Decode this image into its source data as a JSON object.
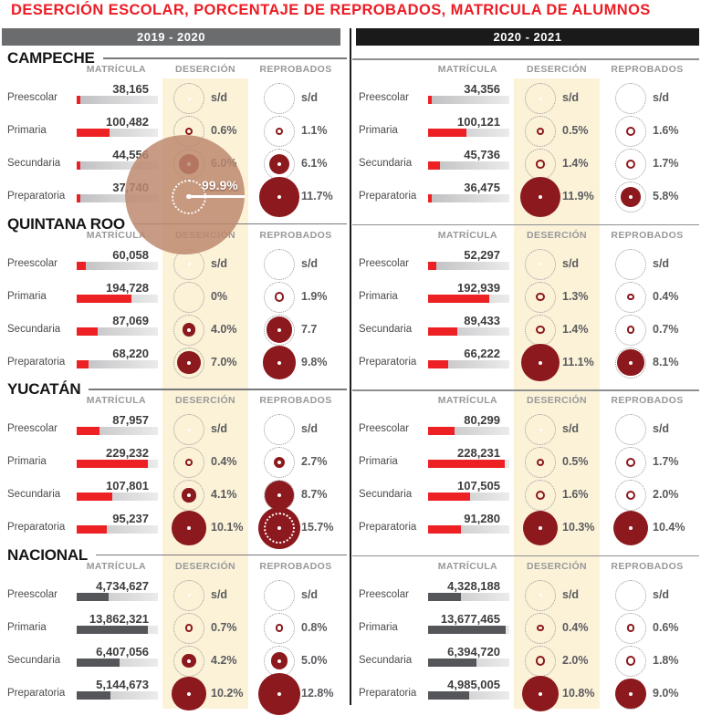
{
  "title": "DESERCIÓN ESCOLAR, PORCENTAJE DE REPROBADOS, MATRICULA DE ALUMNOS",
  "colors": {
    "accent": "#ec1c24",
    "maroon": "#8c191d",
    "bar_red": "#ed2024",
    "bar_dark": "#54565a",
    "cream": "#fbf2d8",
    "year_left_bg": "#6b6c6e",
    "year_right_bg": "#1a1a1a"
  },
  "chart_data": {
    "type": "table",
    "title": "DESERCIÓN ESCOLAR, PORCENTAJE DE REPROBADOS, MATRICULA DE ALUMNOS",
    "period_labels": [
      "2019 - 2020",
      "2020 - 2021"
    ],
    "columns": [
      "MATRÍCULA",
      "DESERCIÓN",
      "REPROBADOS"
    ],
    "levels": [
      "Preescolar",
      "Primaria",
      "Secundaria",
      "Preparatoria"
    ],
    "sections": [
      {
        "name": "CAMPECHE",
        "bar_style": "red",
        "periods": [
          {
            "rows": [
              {
                "label": "Preescolar",
                "matricula": "38,165",
                "bar_fill": 0.04,
                "desercion": "s/d",
                "reprobados": "s/d"
              },
              {
                "label": "Primaria",
                "matricula": "100,482",
                "bar_fill": 0.41,
                "desercion": "0.6%",
                "reprobados": "1.1%"
              },
              {
                "label": "Secundaria",
                "matricula": "44,556",
                "bar_fill": 0.05,
                "desercion": "6.0%",
                "reprobados": "6.1%"
              },
              {
                "label": "Preparatoria",
                "matricula": "37,740",
                "bar_fill": 0.04,
                "desercion": "99.9%",
                "desercion_highlight": true,
                "reprobados": "11.7%"
              }
            ]
          },
          {
            "rows": [
              {
                "label": "Preescolar",
                "matricula": "34,356",
                "bar_fill": 0.05,
                "desercion": "s/d",
                "reprobados": "s/d"
              },
              {
                "label": "Primaria",
                "matricula": "100,121",
                "bar_fill": 0.47,
                "desercion": "0.5%",
                "reprobados": "1.6%"
              },
              {
                "label": "Secundaria",
                "matricula": "45,736",
                "bar_fill": 0.15,
                "desercion": "1.4%",
                "reprobados": "1.7%"
              },
              {
                "label": "Preparatoria",
                "matricula": "36,475",
                "bar_fill": 0.05,
                "desercion": "11.9%",
                "reprobados": "5.8%"
              }
            ]
          }
        ]
      },
      {
        "name": "QUINTANA ROO",
        "bar_style": "red",
        "periods": [
          {
            "rows": [
              {
                "label": "Preescolar",
                "matricula": "60,058",
                "bar_fill": 0.11,
                "desercion": "s/d",
                "reprobados": "s/d"
              },
              {
                "label": "Primaria",
                "matricula": "194,728",
                "bar_fill": 0.67,
                "desercion": "0%",
                "reprobados": "1.9%"
              },
              {
                "label": "Secundaria",
                "matricula": "87,069",
                "bar_fill": 0.26,
                "desercion": "4.0%",
                "reprobados": "7.7"
              },
              {
                "label": "Preparatoria",
                "matricula": "68,220",
                "bar_fill": 0.15,
                "desercion": "7.0%",
                "reprobados": "9.8%"
              }
            ]
          },
          {
            "rows": [
              {
                "label": "Preescolar",
                "matricula": "52,297",
                "bar_fill": 0.1,
                "desercion": "s/d",
                "reprobados": "s/d"
              },
              {
                "label": "Primaria",
                "matricula": "192,939",
                "bar_fill": 0.75,
                "desercion": "1.3%",
                "reprobados": "0.4%"
              },
              {
                "label": "Secundaria",
                "matricula": "89,433",
                "bar_fill": 0.36,
                "desercion": "1.4%",
                "reprobados": "0.7%"
              },
              {
                "label": "Preparatoria",
                "matricula": "66,222",
                "bar_fill": 0.25,
                "desercion": "11.1%",
                "reprobados": "8.1%"
              }
            ]
          }
        ]
      },
      {
        "name": "YUCATÁN",
        "bar_style": "red",
        "periods": [
          {
            "rows": [
              {
                "label": "Preescolar",
                "matricula": "87,957",
                "bar_fill": 0.28,
                "desercion": "s/d",
                "reprobados": "s/d"
              },
              {
                "label": "Primaria",
                "matricula": "229,232",
                "bar_fill": 0.88,
                "desercion": "0.4%",
                "reprobados": "2.7%"
              },
              {
                "label": "Secundaria",
                "matricula": "107,801",
                "bar_fill": 0.44,
                "desercion": "4.1%",
                "reprobados": "8.7%"
              },
              {
                "label": "Preparatoria",
                "matricula": "95,237",
                "bar_fill": 0.37,
                "desercion": "10.1%",
                "reprobados": "15.7%"
              }
            ]
          },
          {
            "rows": [
              {
                "label": "Preescolar",
                "matricula": "80,299",
                "bar_fill": 0.33,
                "desercion": "s/d",
                "reprobados": "s/d"
              },
              {
                "label": "Primaria",
                "matricula": "228,231",
                "bar_fill": 0.94,
                "desercion": "0.5%",
                "reprobados": "1.7%"
              },
              {
                "label": "Secundaria",
                "matricula": "107,505",
                "bar_fill": 0.52,
                "desercion": "1.6%",
                "reprobados": "2.0%"
              },
              {
                "label": "Preparatoria",
                "matricula": "91,280",
                "bar_fill": 0.41,
                "desercion": "10.3%",
                "reprobados": "10.4%"
              }
            ]
          }
        ]
      },
      {
        "name": "NACIONAL",
        "bar_style": "dark",
        "periods": [
          {
            "rows": [
              {
                "label": "Preescolar",
                "matricula": "4,734,627",
                "bar_fill": 0.39,
                "desercion": "s/d",
                "reprobados": "s/d"
              },
              {
                "label": "Primaria",
                "matricula": "13,862,321",
                "bar_fill": 0.88,
                "desercion": "0.7%",
                "reprobados": "0.8%"
              },
              {
                "label": "Secundaria",
                "matricula": "6,407,056",
                "bar_fill": 0.53,
                "desercion": "4.2%",
                "reprobados": "5.0%"
              },
              {
                "label": "Preparatoria",
                "matricula": "5,144,673",
                "bar_fill": 0.42,
                "desercion": "10.2%",
                "reprobados": "12.8%"
              }
            ]
          },
          {
            "rows": [
              {
                "label": "Preescolar",
                "matricula": "4,328,188",
                "bar_fill": 0.4,
                "desercion": "s/d",
                "reprobados": "s/d"
              },
              {
                "label": "Primaria",
                "matricula": "13,677,465",
                "bar_fill": 0.95,
                "desercion": "0.4%",
                "reprobados": "0.6%"
              },
              {
                "label": "Secundaria",
                "matricula": "6,394,720",
                "bar_fill": 0.6,
                "desercion": "2.0%",
                "reprobados": "1.8%"
              },
              {
                "label": "Preparatoria",
                "matricula": "4,985,005",
                "bar_fill": 0.5,
                "desercion": "10.8%",
                "reprobados": "9.0%"
              }
            ]
          }
        ]
      }
    ]
  }
}
